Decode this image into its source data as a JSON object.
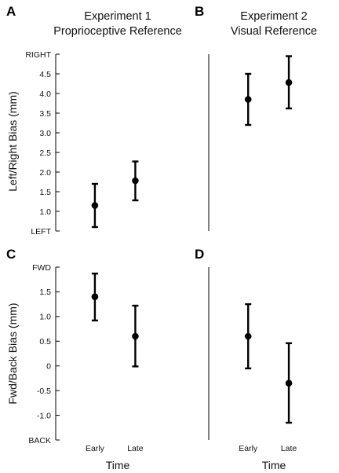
{
  "panel_letters": [
    "A",
    "B",
    "C",
    "D"
  ],
  "column_titles": [
    {
      "line1": "Experiment 1",
      "line2": "Proprioceptive Reference"
    },
    {
      "line1": "Experiment 2",
      "line2": "Visual Reference"
    }
  ],
  "shared_x_title": "Time",
  "chart_data": [
    {
      "panel": "A",
      "type": "scatter",
      "title": "Experiment 1 Proprioceptive Reference",
      "ylabel": "Left/Right Bias (mm)",
      "xlabel": "",
      "categories": [
        "Early",
        "Late"
      ],
      "category_labels_shown": false,
      "ylim": [
        0.5,
        5.0
      ],
      "yticks": [
        {
          "value": 0.5,
          "label": "LEFT"
        },
        {
          "value": 1.0,
          "label": "1.0"
        },
        {
          "value": 1.5,
          "label": "1.5"
        },
        {
          "value": 2.0,
          "label": "2.0"
        },
        {
          "value": 2.5,
          "label": "2.5"
        },
        {
          "value": 3.0,
          "label": "3.0"
        },
        {
          "value": 3.5,
          "label": "3.5"
        },
        {
          "value": 4.0,
          "label": "4.0"
        },
        {
          "value": 4.5,
          "label": "4.5"
        },
        {
          "value": 5.0,
          "label": "RIGHT"
        }
      ],
      "points": [
        {
          "category": "Early",
          "mean": 1.15,
          "low": 0.6,
          "high": 1.7
        },
        {
          "category": "Late",
          "mean": 1.78,
          "low": 1.28,
          "high": 2.27
        }
      ]
    },
    {
      "panel": "B",
      "type": "scatter",
      "title": "Experiment 2 Visual Reference",
      "ylabel": "",
      "xlabel": "",
      "categories": [
        "Early",
        "Late"
      ],
      "category_labels_shown": false,
      "ylim": [
        0.5,
        5.0
      ],
      "yticks": [],
      "points": [
        {
          "category": "Early",
          "mean": 3.85,
          "low": 3.2,
          "high": 4.5
        },
        {
          "category": "Late",
          "mean": 4.28,
          "low": 3.62,
          "high": 4.95
        }
      ]
    },
    {
      "panel": "C",
      "type": "scatter",
      "title": "",
      "ylabel": "Fwd/Back Bias (mm)",
      "xlabel": "Time",
      "categories": [
        "Early",
        "Late"
      ],
      "category_labels_shown": true,
      "ylim": [
        -1.5,
        2.0
      ],
      "yticks": [
        {
          "value": -1.5,
          "label": "BACK"
        },
        {
          "value": -1.0,
          "label": "-1.0"
        },
        {
          "value": -0.5,
          "label": "-0.5"
        },
        {
          "value": 0.0,
          "label": "0"
        },
        {
          "value": 0.5,
          "label": "0.5"
        },
        {
          "value": 1.0,
          "label": "1.0"
        },
        {
          "value": 1.5,
          "label": "1.5"
        },
        {
          "value": 2.0,
          "label": "FWD"
        }
      ],
      "points": [
        {
          "category": "Early",
          "mean": 1.4,
          "low": 0.92,
          "high": 1.87
        },
        {
          "category": "Late",
          "mean": 0.6,
          "low": -0.01,
          "high": 1.22
        }
      ]
    },
    {
      "panel": "D",
      "type": "scatter",
      "title": "",
      "ylabel": "",
      "xlabel": "Time",
      "categories": [
        "Early",
        "Late"
      ],
      "category_labels_shown": true,
      "ylim": [
        -1.5,
        2.0
      ],
      "yticks": [],
      "points": [
        {
          "category": "Early",
          "mean": 0.6,
          "low": -0.05,
          "high": 1.25
        },
        {
          "category": "Late",
          "mean": -0.35,
          "low": -1.15,
          "high": 0.46
        }
      ]
    }
  ]
}
